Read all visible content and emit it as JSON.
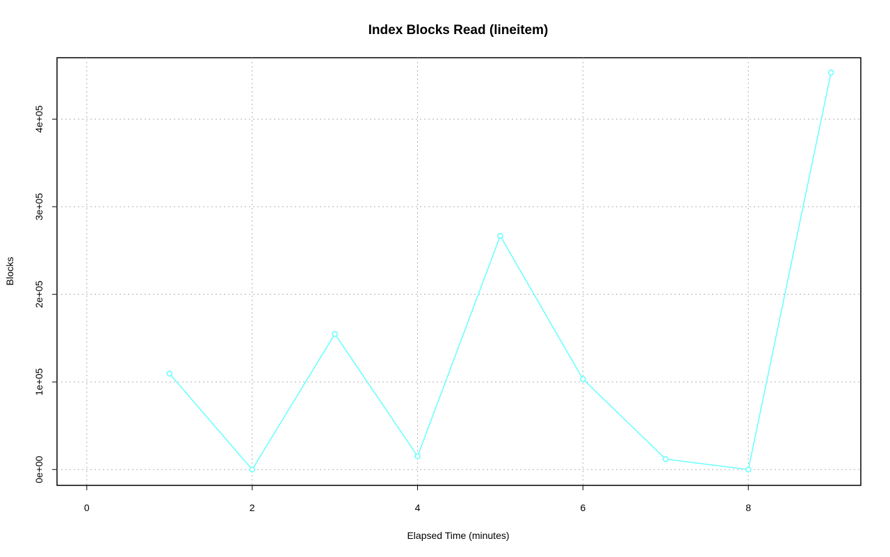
{
  "chart_data": {
    "type": "line",
    "title": "Index Blocks Read (lineitem)",
    "x_label": "Elapsed Time (minutes)",
    "y_label": "Blocks",
    "x": [
      1,
      2,
      3,
      4,
      5,
      6,
      7,
      8,
      9
    ],
    "series": [
      {
        "color": "#66ffff",
        "values": [
          109500,
          0,
          154800,
          15100,
          266700,
          103200,
          11900,
          0,
          453200
        ]
      }
    ],
    "xlim": [
      -0.36,
      9.36
    ],
    "ylim": [
      -18100,
      470100
    ],
    "xticks": [
      0,
      2,
      4,
      6,
      8
    ],
    "yticks": [
      {
        "value": 0,
        "label": "0e+00"
      },
      {
        "value": 100000,
        "label": "1e+05"
      },
      {
        "value": 200000,
        "label": "2e+05"
      },
      {
        "value": 300000,
        "label": "3e+05"
      },
      {
        "value": 400000,
        "label": "4e+05"
      }
    ],
    "grid": true
  }
}
